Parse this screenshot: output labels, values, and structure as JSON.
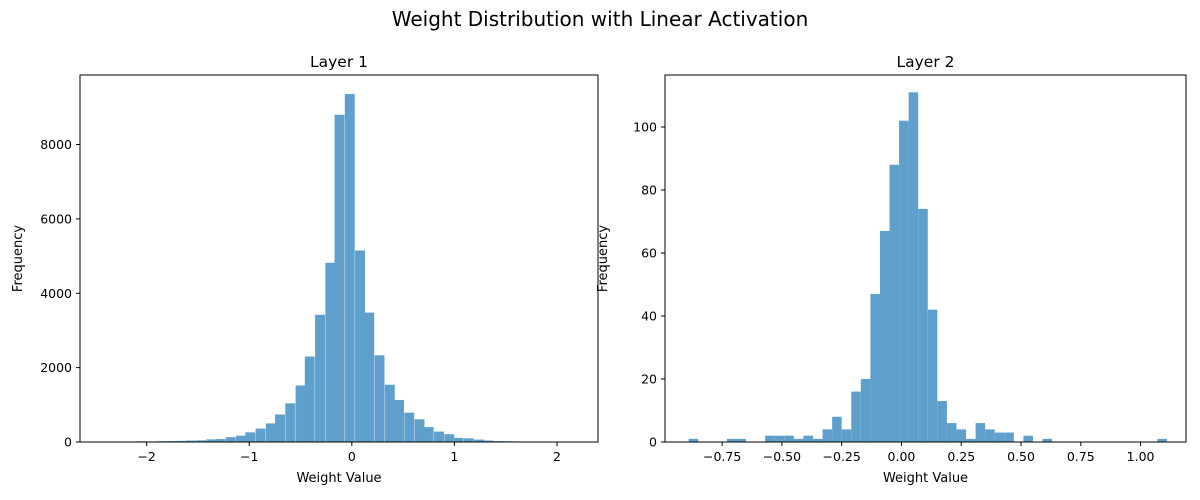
{
  "figure": {
    "title": "Weight Distribution with Linear Activation"
  },
  "colors": {
    "bar": "#5f9fcc",
    "axis": "#000000",
    "background": "#ffffff"
  },
  "chart_data": [
    {
      "type": "bar",
      "title": "Layer 1",
      "xlabel": "Weight Value",
      "ylabel": "Frequency",
      "xlim": [
        -2.65,
        2.4
      ],
      "ylim": [
        0,
        9870
      ],
      "xticks": [
        -2,
        -1,
        0,
        1,
        2
      ],
      "xtick_labels": [
        "−2",
        "−1",
        "0",
        "1",
        "2"
      ],
      "yticks": [
        0,
        2000,
        4000,
        6000,
        8000
      ],
      "ytick_labels": [
        "0",
        "2000",
        "4000",
        "6000",
        "8000"
      ],
      "grid": false,
      "bin_width": 0.0965,
      "bin_centers": [
        -2.44,
        -2.34,
        -2.05,
        -1.95,
        -1.86,
        -1.76,
        -1.66,
        -1.57,
        -1.47,
        -1.37,
        -1.28,
        -1.18,
        -1.08,
        -0.99,
        -0.89,
        -0.79,
        -0.7,
        -0.6,
        -0.5,
        -0.41,
        -0.31,
        -0.21,
        -0.12,
        -0.02,
        0.08,
        0.17,
        0.27,
        0.37,
        0.46,
        0.56,
        0.66,
        0.75,
        0.85,
        0.95,
        1.04,
        1.14,
        1.24,
        1.33,
        1.43,
        1.53,
        1.62,
        1.72,
        1.82,
        1.91,
        2.01,
        2.11
      ],
      "values": [
        2,
        2,
        20,
        10,
        20,
        25,
        30,
        40,
        45,
        70,
        80,
        130,
        170,
        260,
        360,
        500,
        740,
        1040,
        1520,
        2300,
        3420,
        4820,
        8800,
        9360,
        5150,
        3480,
        2330,
        1540,
        1130,
        790,
        610,
        400,
        280,
        210,
        110,
        100,
        65,
        40,
        25,
        20,
        15,
        10,
        5,
        3,
        2,
        2
      ]
    },
    {
      "type": "bar",
      "title": "Layer 2",
      "xlabel": "Weight Value",
      "ylabel": "Frequency",
      "xlim": [
        -0.989,
        1.19
      ],
      "ylim": [
        0,
        116.5
      ],
      "xticks": [
        -0.75,
        -0.5,
        -0.25,
        0,
        0.25,
        0.5,
        0.75,
        1.0
      ],
      "xtick_labels": [
        "−0.75",
        "−0.50",
        "−0.25",
        "0.00",
        "0.25",
        "0.50",
        "0.75",
        "1.00"
      ],
      "yticks": [
        0,
        20,
        40,
        60,
        80,
        100
      ],
      "ytick_labels": [
        "0",
        "20",
        "40",
        "60",
        "80",
        "100"
      ],
      "grid": false,
      "bin_width": 0.04,
      "bin_centers": [
        -0.87,
        -0.71,
        -0.67,
        -0.55,
        -0.51,
        -0.47,
        -0.43,
        -0.39,
        -0.35,
        -0.31,
        -0.27,
        -0.23,
        -0.19,
        -0.15,
        -0.11,
        -0.07,
        -0.03,
        0.01,
        0.05,
        0.09,
        0.13,
        0.17,
        0.21,
        0.25,
        0.29,
        0.33,
        0.37,
        0.41,
        0.45,
        0.53,
        0.61,
        1.09
      ],
      "values": [
        1,
        1,
        1,
        2,
        2,
        2,
        1,
        2,
        1,
        4,
        8,
        4,
        16,
        20,
        47,
        67,
        88,
        102,
        111,
        74,
        42,
        13,
        6,
        4,
        1,
        6,
        4,
        3,
        3,
        2,
        1,
        1
      ]
    }
  ]
}
